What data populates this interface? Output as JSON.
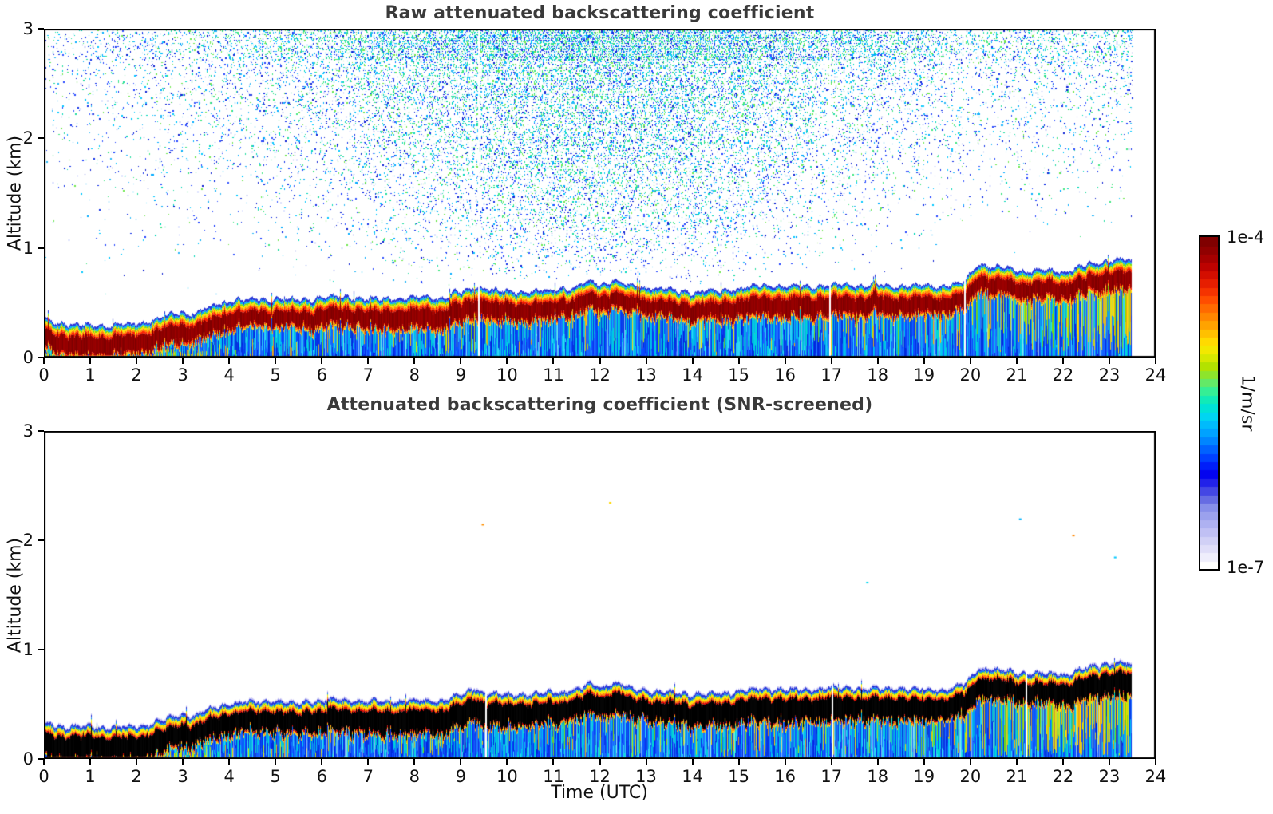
{
  "figure": {
    "background": "#ffffff",
    "title_color": "#3a3a3a",
    "tick_color": "#000000"
  },
  "colorbar": {
    "unit": "1/m/sr",
    "top_label": "1e-4",
    "bottom_label": "1e-7",
    "steps": 40,
    "stops": [
      "#ffffff",
      "#e9e7fb",
      "#d5d3f7",
      "#bdbdf3",
      "#a3a8ef",
      "#8890ea",
      "#5a60e0",
      "#2a2ae8",
      "#0000f0",
      "#0030ff",
      "#0060ff",
      "#0090ff",
      "#00b4ff",
      "#00d8f0",
      "#00e8c8",
      "#30ee9a",
      "#70e85a",
      "#a8e000",
      "#d8e800",
      "#ffe800",
      "#ffc400",
      "#ff9c00",
      "#ff7400",
      "#ff4c00",
      "#f02800",
      "#d81000",
      "#b80000",
      "#980000",
      "#800000"
    ]
  },
  "chart_data": [
    {
      "type": "heatmap",
      "title": "Raw attenuated backscattering coefficient",
      "xlabel": "",
      "ylabel": "Altitude (km)",
      "xlim": [
        0,
        24
      ],
      "ylim": [
        0,
        3
      ],
      "xticks": [
        0,
        1,
        2,
        3,
        4,
        5,
        6,
        7,
        8,
        9,
        10,
        11,
        12,
        13,
        14,
        15,
        16,
        17,
        18,
        19,
        20,
        21,
        22,
        23,
        24
      ],
      "yticks": [
        0,
        1,
        2,
        3
      ],
      "scale": "log",
      "vmin": 1e-07,
      "vmax": 0.0001,
      "units": "1/m/sr",
      "data_end_hour": 23.5,
      "seed": 11,
      "layer_top_km": {
        "t": [
          0,
          0.5,
          1,
          1.5,
          2,
          2.5,
          3,
          3.25,
          3.5,
          4,
          4.5,
          5,
          5.5,
          6,
          6.5,
          7,
          7.5,
          8,
          8.5,
          9,
          9.3,
          9.6,
          10,
          10.5,
          11,
          11.5,
          11.8,
          12,
          12.3,
          12.6,
          13,
          13.5,
          14,
          14.5,
          15,
          15.5,
          16,
          16.5,
          17,
          17.5,
          18,
          18.5,
          19,
          19.5,
          19.9,
          20.15,
          20.5,
          21,
          21.5,
          22,
          22.5,
          23,
          23.3,
          23.5
        ],
        "z": [
          0.34,
          0.31,
          0.3,
          0.3,
          0.31,
          0.36,
          0.42,
          0.4,
          0.45,
          0.52,
          0.53,
          0.54,
          0.52,
          0.55,
          0.56,
          0.53,
          0.54,
          0.55,
          0.54,
          0.6,
          0.66,
          0.62,
          0.6,
          0.6,
          0.62,
          0.65,
          0.7,
          0.66,
          0.71,
          0.66,
          0.64,
          0.62,
          0.6,
          0.61,
          0.63,
          0.66,
          0.65,
          0.65,
          0.66,
          0.66,
          0.66,
          0.66,
          0.65,
          0.66,
          0.7,
          0.86,
          0.83,
          0.8,
          0.79,
          0.79,
          0.84,
          0.89,
          0.9,
          0.86
        ]
      },
      "core_km": 0.15,
      "core_color_set": [
        "#8a0000",
        "#940000",
        "#7f0000",
        "#9c0000"
      ],
      "top_fringe": [
        [
          "#2a35d8",
          0.022
        ],
        [
          "#00b0ff",
          0.016
        ],
        [
          "#80e000",
          0.014
        ],
        [
          "#ffe000",
          0.016
        ],
        [
          "#ff8c00",
          0.018
        ],
        [
          "#ff2000",
          0.02
        ]
      ],
      "bottom_fringe": [
        [
          "#ff2000",
          0.014
        ],
        [
          "#ff9000",
          0.014
        ],
        [
          "#ffd800",
          0.014
        ]
      ],
      "streaks": {
        "cyan": [
          "#00c8f0",
          "#00b4e8",
          "#30d8f8",
          "#00dcd0"
        ],
        "blue": [
          "#0a46ff",
          "#0a32e8",
          "#1460ff",
          "#0028dc",
          "#2070ff"
        ],
        "warm": [
          "#ffe400",
          "#ffd000",
          "#ffaa00",
          "#c8e800",
          "#7fe400"
        ],
        "light": "#d8f0fc",
        "cyan_prob": {
          "t": [
            0,
            3.5,
            4,
            9,
            9.6,
            15,
            20,
            23.5
          ],
          "p": [
            0.5,
            0.42,
            0.2,
            0.22,
            0.38,
            0.3,
            0.38,
            0.33
          ]
        },
        "warm_prob": {
          "t": [
            0,
            3.2,
            3.8,
            9,
            19,
            20.5,
            21.5,
            22.5,
            23.5
          ],
          "p": [
            0.5,
            0.45,
            0.1,
            0.07,
            0.1,
            0.2,
            0.3,
            0.5,
            0.55
          ]
        }
      },
      "noise": {
        "amp": 0.65,
        "t_center": 12,
        "t_sigma": 7.2,
        "min_f": 0.12,
        "late_floor": 0.35,
        "top_boost": 0.3,
        "blue": [
          "#1030e8",
          "#2244ff",
          "#0a1ed2",
          "#3355ff"
        ],
        "cyan": [
          "#00aaff",
          "#00c8ff",
          "#28b8f8"
        ],
        "green": [
          "#20dca0",
          "#40e880",
          "#00d8b8",
          "#70e850"
        ]
      },
      "gaps_hours": [
        9.37,
        16.95,
        19.87
      ]
    },
    {
      "type": "heatmap",
      "title": "Attenuated backscattering coefficient (SNR-screened)",
      "xlabel": "Time (UTC)",
      "ylabel": "Altitude (km)",
      "xlim": [
        0,
        24
      ],
      "ylim": [
        0,
        3
      ],
      "xticks": [
        0,
        1,
        2,
        3,
        4,
        5,
        6,
        7,
        8,
        9,
        10,
        11,
        12,
        13,
        14,
        15,
        16,
        17,
        18,
        19,
        20,
        21,
        22,
        23,
        24
      ],
      "yticks": [
        0,
        1,
        2,
        3
      ],
      "scale": "log",
      "vmin": 1e-07,
      "vmax": 0.0001,
      "units": "1/m/sr",
      "data_end_hour": 23.5,
      "seed": 29,
      "layer_top_km": {
        "t": [
          0,
          0.5,
          1,
          1.5,
          2,
          2.5,
          3,
          3.25,
          3.5,
          4,
          4.5,
          5,
          5.5,
          6,
          6.5,
          7,
          7.5,
          8,
          8.5,
          9,
          9.3,
          9.6,
          10,
          10.5,
          11,
          11.5,
          11.8,
          12,
          12.3,
          12.6,
          13,
          13.5,
          14,
          14.5,
          15,
          15.5,
          16,
          16.5,
          17,
          17.5,
          18,
          18.5,
          19,
          19.5,
          19.9,
          20.15,
          20.5,
          21,
          21.5,
          22,
          22.5,
          23,
          23.3,
          23.5
        ],
        "z": [
          0.34,
          0.31,
          0.3,
          0.3,
          0.31,
          0.36,
          0.42,
          0.4,
          0.45,
          0.52,
          0.53,
          0.54,
          0.52,
          0.55,
          0.56,
          0.53,
          0.54,
          0.55,
          0.54,
          0.6,
          0.66,
          0.62,
          0.6,
          0.6,
          0.62,
          0.65,
          0.7,
          0.66,
          0.71,
          0.66,
          0.64,
          0.62,
          0.6,
          0.61,
          0.63,
          0.66,
          0.65,
          0.65,
          0.66,
          0.66,
          0.66,
          0.66,
          0.65,
          0.66,
          0.7,
          0.86,
          0.83,
          0.8,
          0.79,
          0.79,
          0.84,
          0.89,
          0.9,
          0.86
        ]
      },
      "core_km": 0.19,
      "core_color_set": [
        "#000000",
        "#050505"
      ],
      "top_fringe": [
        [
          "#c9c5f5",
          0.012
        ],
        [
          "#2a35d8",
          0.02
        ],
        [
          "#0080ff",
          0.012
        ],
        [
          "#80e000",
          0.008
        ],
        [
          "#ffe800",
          0.02
        ],
        [
          "#ff9000",
          0.016
        ],
        [
          "#e00000",
          0.014
        ]
      ],
      "bottom_fringe": [
        [
          "#d00000",
          0.012
        ],
        [
          "#ff9000",
          0.012
        ],
        [
          "#ffd800",
          0.012
        ]
      ],
      "streaks": {
        "cyan": [
          "#00c8f0",
          "#00b4e8",
          "#30d8f8",
          "#00dcd0"
        ],
        "blue": [
          "#0a46ff",
          "#0a32e8",
          "#1460ff",
          "#0028dc",
          "#2070ff"
        ],
        "warm": [
          "#ffe400",
          "#ffd000",
          "#ffaa00",
          "#c8e800",
          "#7fe400"
        ],
        "light": "#d8f0fc",
        "cyan_prob": {
          "t": [
            0,
            3.5,
            4,
            9,
            9.6,
            15,
            20,
            23.5
          ],
          "p": [
            0.5,
            0.42,
            0.2,
            0.22,
            0.38,
            0.3,
            0.38,
            0.33
          ]
        },
        "warm_prob": {
          "t": [
            0,
            3.2,
            3.8,
            9,
            15,
            19.5,
            20.3,
            21,
            22,
            23.5
          ],
          "p": [
            0.5,
            0.42,
            0.1,
            0.08,
            0.12,
            0.15,
            0.3,
            0.45,
            0.6,
            0.65
          ]
        }
      },
      "stray_dots": [
        {
          "t": 9.45,
          "z": 2.15,
          "c": "#ff9000"
        },
        {
          "t": 12.2,
          "z": 2.35,
          "c": "#ffd800"
        },
        {
          "t": 17.75,
          "z": 1.62,
          "c": "#00d8f0"
        },
        {
          "t": 21.05,
          "z": 2.2,
          "c": "#00b4ff"
        },
        {
          "t": 22.2,
          "z": 2.05,
          "c": "#ff8800"
        },
        {
          "t": 23.1,
          "z": 1.85,
          "c": "#00c8ff"
        }
      ],
      "gaps_hours": [
        9.53,
        17.0,
        21.2
      ]
    }
  ]
}
